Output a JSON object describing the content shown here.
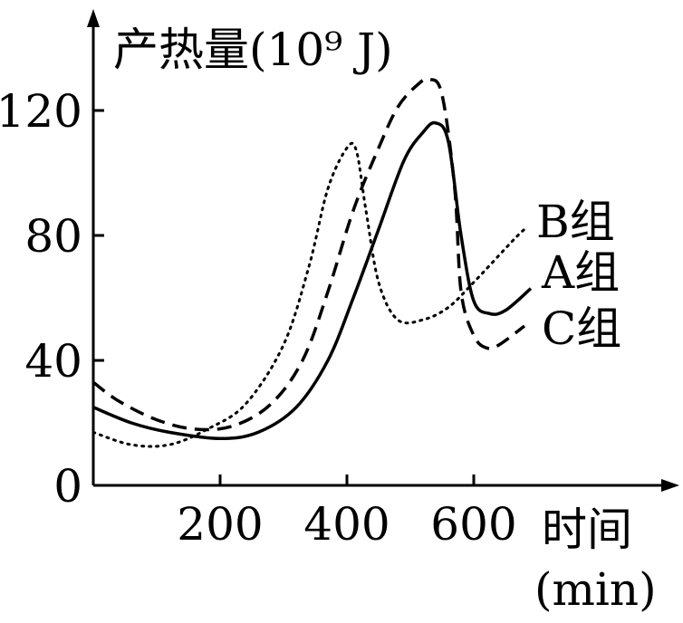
{
  "chart_data": {
    "type": "line",
    "ylabel": "产热量(10⁹ J)",
    "xlabel_line1": "时间",
    "xlabel_line2": "(min)",
    "xlim": [
      0,
      700
    ],
    "ylim": [
      0,
      135
    ],
    "x_ticks": [
      "200",
      "400",
      "600"
    ],
    "y_ticks": [
      "0",
      "40",
      "80",
      "120"
    ],
    "grid": false,
    "series": [
      {
        "name": "A组",
        "style": "solid",
        "points": [
          [
            0,
            25
          ],
          [
            60,
            20
          ],
          [
            120,
            17
          ],
          [
            200,
            15
          ],
          [
            260,
            17
          ],
          [
            320,
            25
          ],
          [
            370,
            40
          ],
          [
            410,
            60
          ],
          [
            450,
            82
          ],
          [
            490,
            104
          ],
          [
            520,
            113
          ],
          [
            540,
            116
          ],
          [
            560,
            110
          ],
          [
            580,
            80
          ],
          [
            600,
            59
          ],
          [
            625,
            55
          ],
          [
            650,
            56
          ],
          [
            690,
            63
          ]
        ]
      },
      {
        "name": "B组",
        "style": "dotted",
        "points": [
          [
            0,
            17
          ],
          [
            60,
            13
          ],
          [
            120,
            13
          ],
          [
            180,
            18
          ],
          [
            240,
            26
          ],
          [
            300,
            45
          ],
          [
            340,
            70
          ],
          [
            370,
            95
          ],
          [
            400,
            108
          ],
          [
            415,
            107
          ],
          [
            430,
            88
          ],
          [
            450,
            65
          ],
          [
            480,
            53
          ],
          [
            520,
            53
          ],
          [
            560,
            57
          ],
          [
            600,
            65
          ],
          [
            660,
            78
          ],
          [
            680,
            82
          ]
        ]
      },
      {
        "name": "C组",
        "style": "dashed",
        "points": [
          [
            0,
            33
          ],
          [
            40,
            27
          ],
          [
            100,
            21
          ],
          [
            160,
            18
          ],
          [
            220,
            19
          ],
          [
            280,
            26
          ],
          [
            330,
            40
          ],
          [
            370,
            62
          ],
          [
            410,
            88
          ],
          [
            450,
            108
          ],
          [
            480,
            121
          ],
          [
            510,
            128
          ],
          [
            530,
            130
          ],
          [
            550,
            125
          ],
          [
            570,
            95
          ],
          [
            580,
            62
          ],
          [
            600,
            48
          ],
          [
            620,
            44
          ],
          [
            640,
            45
          ],
          [
            680,
            51
          ]
        ]
      }
    ]
  }
}
